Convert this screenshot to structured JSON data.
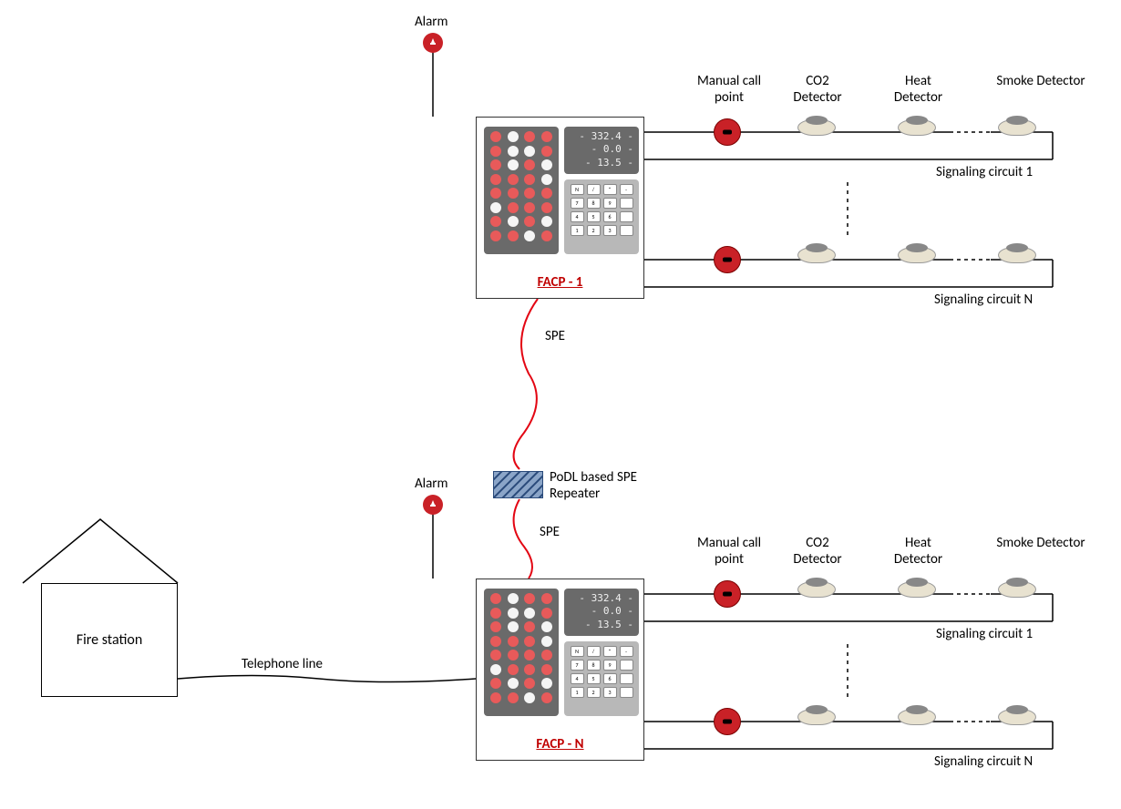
{
  "colors": {
    "alarm_red": "#c92127",
    "facp_label_red": "#c00000",
    "led_red": "#e85a5a",
    "led_white": "#f5f5f5",
    "spe_line_red": "#e30613",
    "repeater_fill": "#5b7ba5",
    "detector_body": "#e8e2d0",
    "black": "#000000"
  },
  "labels": {
    "alarm_top": "Alarm",
    "alarm_bottom": "Alarm",
    "spe_top": "SPE",
    "spe_bottom": "SPE",
    "repeater": "PoDL based SPE\nRepeater",
    "facp1": "FACP - 1",
    "facpn": "FACP - N",
    "manual_call": "Manual call\npoint",
    "co2": "CO2\nDetector",
    "heat": "Heat\nDetector",
    "smoke": "Smoke\nDetector",
    "sig1_top": "Signaling circuit 1",
    "sign_top": "Signaling circuit N",
    "sig1_bot": "Signaling circuit 1",
    "sign_bot": "Signaling circuit N",
    "fire_station": "Fire station",
    "telephone": "Telephone line"
  },
  "display": {
    "line1": "332.4",
    "line2": "0.0",
    "line3": "13.5"
  },
  "led_pattern": [
    [
      "r",
      "w",
      "r",
      "r"
    ],
    [
      "r",
      "w",
      "w",
      "r"
    ],
    [
      "r",
      "w",
      "r",
      "w"
    ],
    [
      "r",
      "r",
      "r",
      "w"
    ],
    [
      "r",
      "r",
      "r",
      "r"
    ],
    [
      "w",
      "r",
      "r",
      "r"
    ],
    [
      "r",
      "w",
      "r",
      "w"
    ],
    [
      "r",
      "r",
      "w",
      "r"
    ]
  ],
  "keypad": [
    [
      "N",
      "/",
      "*",
      "-"
    ],
    [
      "7",
      "8",
      "9",
      ""
    ],
    [
      "4",
      "5",
      "6",
      ""
    ],
    [
      "1",
      "2",
      "3",
      ""
    ]
  ],
  "fontsize": {
    "labels": 15,
    "facp_title": 15,
    "fire_station": 16
  }
}
